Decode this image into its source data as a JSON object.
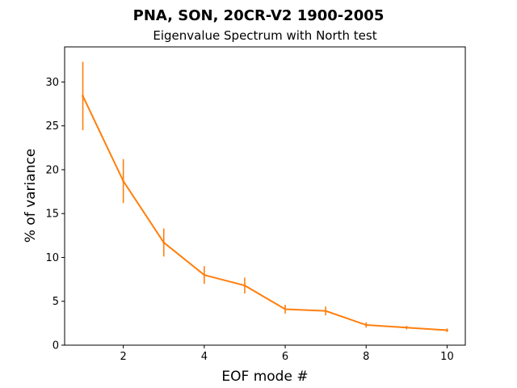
{
  "chart_data": {
    "type": "line",
    "title": "PNA, SON, 20CR-V2 1900-2005",
    "subtitle": "Eigenvalue Spectrum with North test",
    "xlabel": "EOF mode #",
    "ylabel": "% of variance",
    "x": [
      1,
      2,
      3,
      4,
      5,
      6,
      7,
      8,
      9,
      10
    ],
    "xlim": [
      0.55,
      10.45
    ],
    "ylim": [
      0,
      34
    ],
    "xticks": [
      "2",
      "4",
      "6",
      "8",
      "10"
    ],
    "yticks": [
      "0",
      "5",
      "10",
      "15",
      "20",
      "25",
      "30"
    ],
    "grid": false,
    "legend": "none",
    "series": [
      {
        "values": [
          28.4,
          18.7,
          11.7,
          8.0,
          6.8,
          4.1,
          3.9,
          2.3,
          2.0,
          1.7
        ],
        "error": [
          3.9,
          2.5,
          1.6,
          1.0,
          0.9,
          0.5,
          0.5,
          0.3,
          0.2,
          0.2
        ],
        "color": "#ff7f0e"
      }
    ]
  }
}
